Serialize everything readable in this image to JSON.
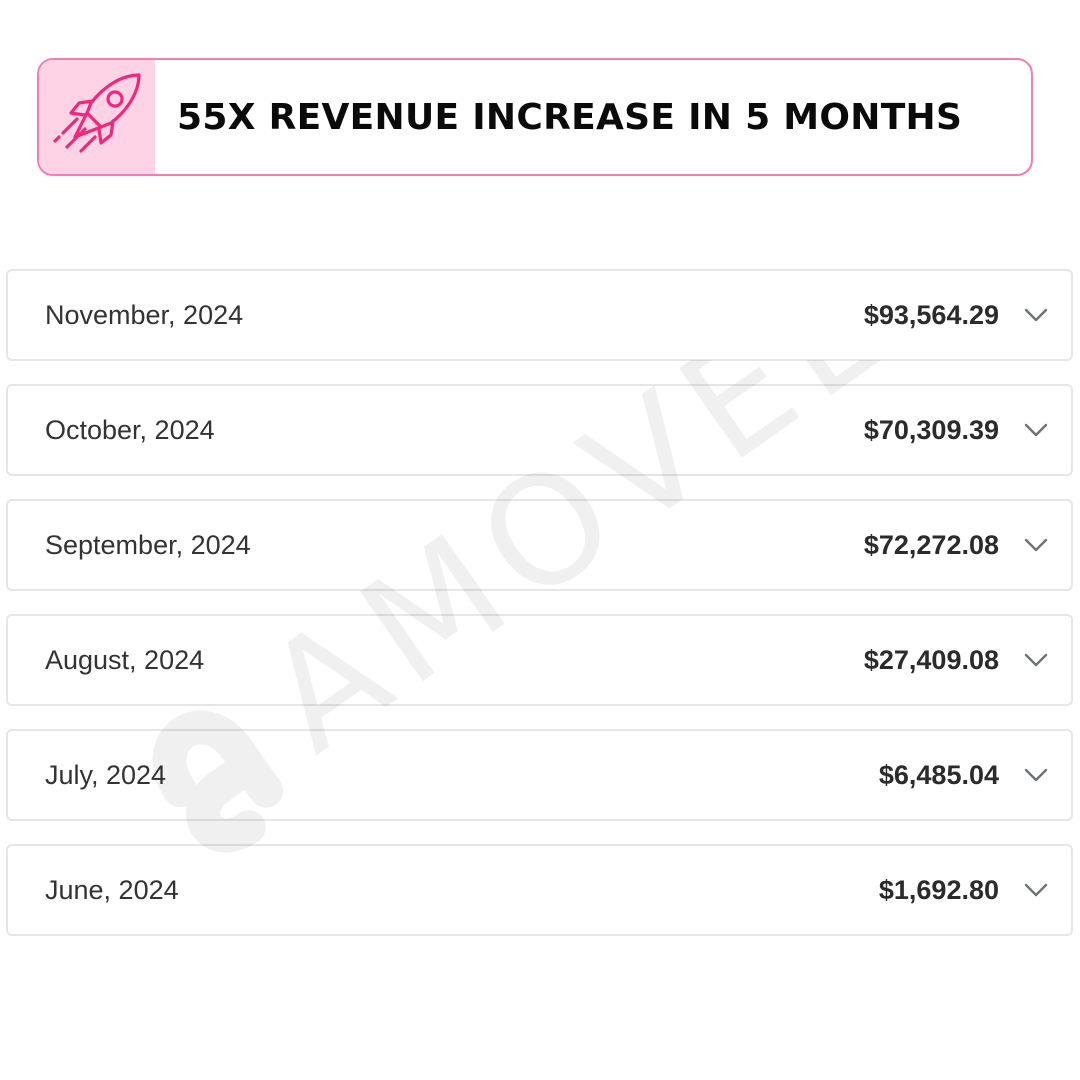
{
  "banner": {
    "title": "55X REVENUE INCREASE IN 5 MONTHS",
    "icon": "rocket-icon",
    "border_color": "#f27fb4",
    "icon_bg_color": "#ffd3e6",
    "icon_color": "#f0287c"
  },
  "rows": [
    {
      "label": "November, 2024",
      "amount": "$93,564.29"
    },
    {
      "label": "October, 2024",
      "amount": "$70,309.39"
    },
    {
      "label": "September, 2024",
      "amount": "$72,272.08"
    },
    {
      "label": "August, 2024",
      "amount": "$27,409.08"
    },
    {
      "label": "July, 2024",
      "amount": "$6,485.04"
    },
    {
      "label": "June, 2024",
      "amount": "$1,692.80"
    }
  ],
  "row_icon": "chevron-down-icon",
  "watermark": {
    "text": "AMOVELLA"
  }
}
